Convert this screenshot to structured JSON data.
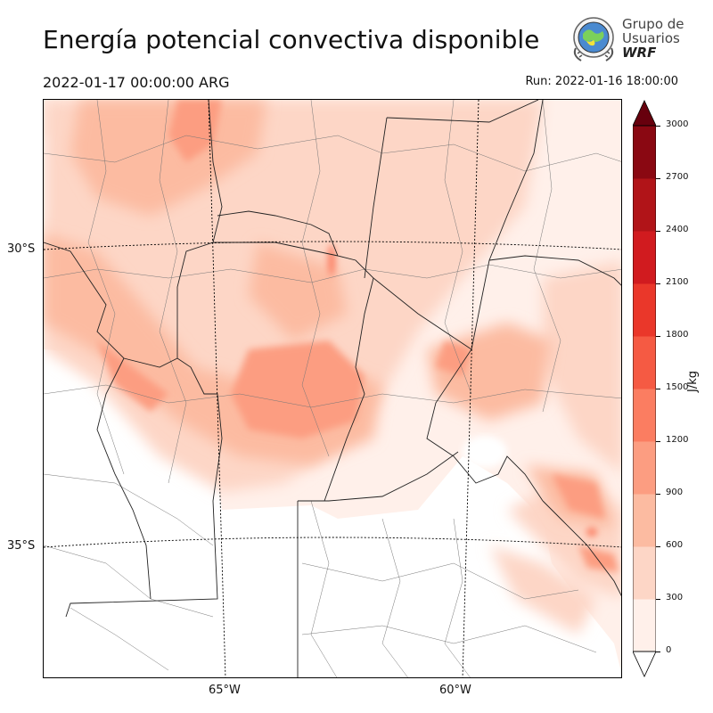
{
  "header": {
    "title": "Energía potencial convectiva disponible",
    "valid_time": "2022-01-17 00:00:00 ARG",
    "run_time": "Run: 2022-01-16 18:00:00"
  },
  "logo": {
    "line1": "Grupo de",
    "line2": "Usuarios",
    "line3": "WRF"
  },
  "map": {
    "lat_labels": [
      "30°S",
      "35°S"
    ],
    "lon_labels": [
      "65°W",
      "60°W"
    ]
  },
  "colorbar": {
    "label": "J/kg",
    "ticks": [
      "0",
      "300",
      "600",
      "900",
      "1200",
      "1500",
      "1800",
      "2100",
      "2400",
      "2700",
      "3000"
    ],
    "colors": [
      "#fff0ea",
      "#fdd6c6",
      "#fcbba1",
      "#fc9d81",
      "#fb7d61",
      "#f55a43",
      "#ea372a",
      "#d11b1f",
      "#b11418",
      "#8a0812",
      "#67000d"
    ]
  }
}
